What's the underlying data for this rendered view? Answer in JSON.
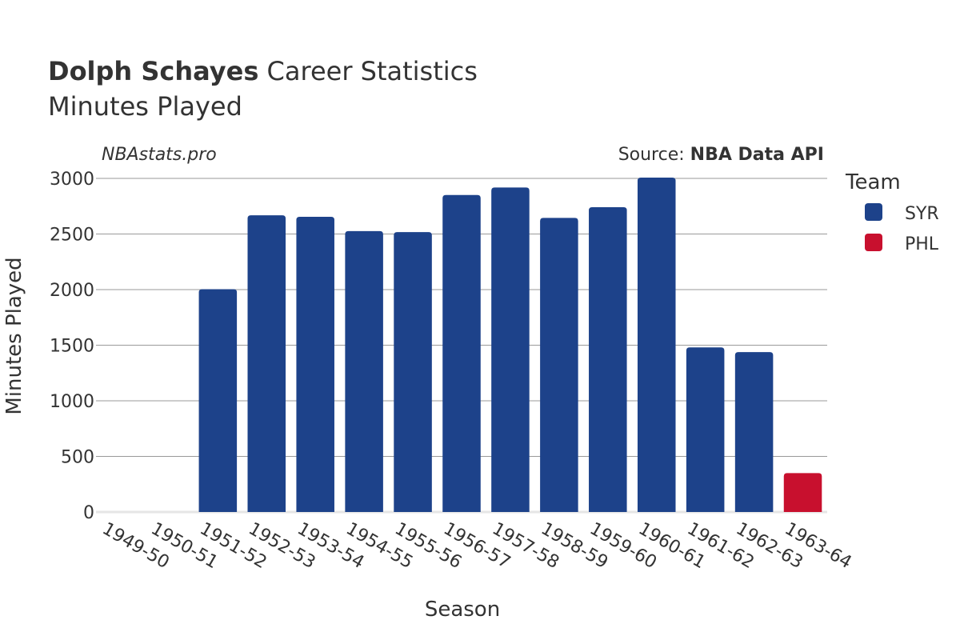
{
  "header": {
    "title_bold": "Dolph Schayes",
    "title_rest": " Career Statistics",
    "subtitle": "Minutes Played",
    "brand": "NBAstats.pro",
    "source_prefix": "Source: ",
    "source_name": "NBA Data API"
  },
  "legend": {
    "title": "Team",
    "items": [
      {
        "label": "SYR",
        "color": "#1d428a"
      },
      {
        "label": "PHL",
        "color": "#c8102e"
      }
    ]
  },
  "chart_data": {
    "type": "bar",
    "xlabel": "Season",
    "ylabel": "Minutes Played",
    "ylim": [
      0,
      3000
    ],
    "yticks": [
      0,
      500,
      1000,
      1500,
      2000,
      2500,
      3000
    ],
    "grid": true,
    "legend_position": "right",
    "categories": [
      "1949-50",
      "1950-51",
      "1951-52",
      "1952-53",
      "1953-54",
      "1954-55",
      "1955-56",
      "1956-57",
      "1957-58",
      "1958-59",
      "1959-60",
      "1960-61",
      "1961-62",
      "1962-63",
      "1963-64"
    ],
    "series": [
      {
        "name": "SYR",
        "color": "#1d428a",
        "values": [
          null,
          null,
          2004,
          2668,
          2655,
          2526,
          2517,
          2851,
          2918,
          2645,
          2741,
          3007,
          1480,
          1438,
          null
        ]
      },
      {
        "name": "PHL",
        "color": "#c8102e",
        "values": [
          null,
          null,
          null,
          null,
          null,
          null,
          null,
          null,
          null,
          null,
          null,
          null,
          null,
          null,
          350
        ]
      }
    ]
  }
}
